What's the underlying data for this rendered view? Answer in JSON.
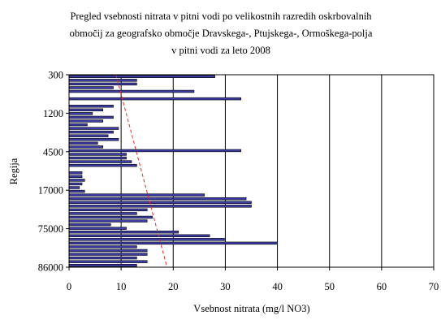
{
  "chart_data": {
    "type": "bar",
    "orientation": "horizontal",
    "title_lines": [
      "Pregled vsebnosti nitrata v pitni vodi po velikostnih razredih oskrbovalnih",
      "območij za geografsko območje Dravskega-, Ptujskega-, Ormoškega-polja",
      "v pitni vodi za leto 2008"
    ],
    "xlabel": "Vsebnost nitrata (mg/l NO3)",
    "ylabel": "Regija",
    "xlim": [
      0,
      70
    ],
    "xticks": [
      0,
      10,
      20,
      30,
      40,
      50,
      60,
      70
    ],
    "y_tick_labels": [
      "300",
      "1200",
      "4500",
      "17000",
      "75000",
      "86000"
    ],
    "vertical_gridlines": true,
    "bar_fill": "#3d3da8",
    "bar_outline": "#000000",
    "trendline_color": "#e8272b",
    "trendline": {
      "x_top": 9,
      "x_bottom": 18.8
    },
    "values": [
      28,
      13,
      13,
      8.5,
      24,
      0,
      33,
      0,
      8.5,
      6.5,
      4.5,
      8.5,
      6.5,
      3.5,
      9.5,
      8.5,
      7.5,
      9.5,
      5.5,
      6.5,
      33,
      11,
      11,
      12,
      13,
      0,
      2.5,
      2.5,
      3,
      2.5,
      2,
      3,
      26,
      34,
      35,
      35,
      15,
      13,
      16,
      15,
      8,
      11,
      21,
      27,
      30,
      40,
      13,
      15,
      15,
      13,
      15,
      13
    ]
  }
}
